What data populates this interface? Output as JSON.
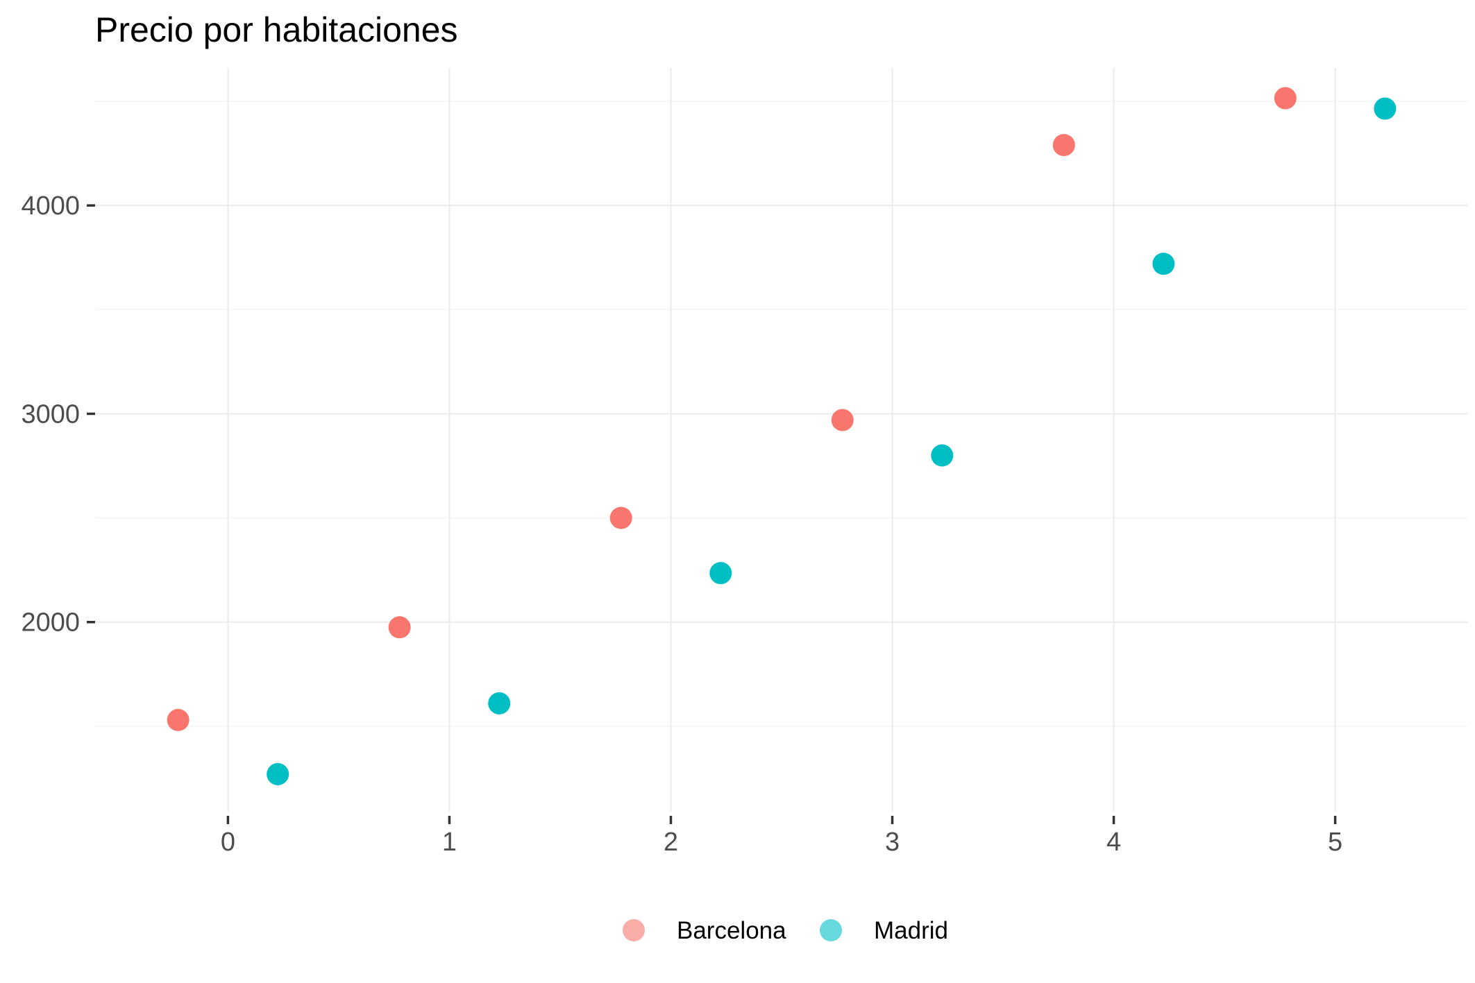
{
  "chart_data": {
    "type": "scatter",
    "title": "Precio por habitaciones",
    "xlabel": "",
    "ylabel": "",
    "x_ticks": [
      "0",
      "1",
      "2",
      "3",
      "4",
      "5"
    ],
    "y_ticks": [
      "2000",
      "3000",
      "4000"
    ],
    "xlim": [
      -0.6,
      5.6
    ],
    "ylim": [
      1090,
      4660
    ],
    "grid": true,
    "legend_position": "bottom",
    "series": [
      {
        "name": "Barcelona",
        "color": "#F8766D",
        "points": [
          {
            "x": -0.225,
            "y": 1530
          },
          {
            "x": 0.775,
            "y": 1975
          },
          {
            "x": 1.775,
            "y": 2500
          },
          {
            "x": 2.775,
            "y": 2970
          },
          {
            "x": 3.775,
            "y": 4290
          },
          {
            "x": 4.775,
            "y": 4515
          }
        ]
      },
      {
        "name": "Madrid",
        "color": "#00BFC4",
        "points": [
          {
            "x": 0.225,
            "y": 1270
          },
          {
            "x": 1.225,
            "y": 1610
          },
          {
            "x": 2.225,
            "y": 2235
          },
          {
            "x": 3.225,
            "y": 2800
          },
          {
            "x": 4.225,
            "y": 3720
          },
          {
            "x": 5.225,
            "y": 4465
          }
        ]
      }
    ]
  }
}
